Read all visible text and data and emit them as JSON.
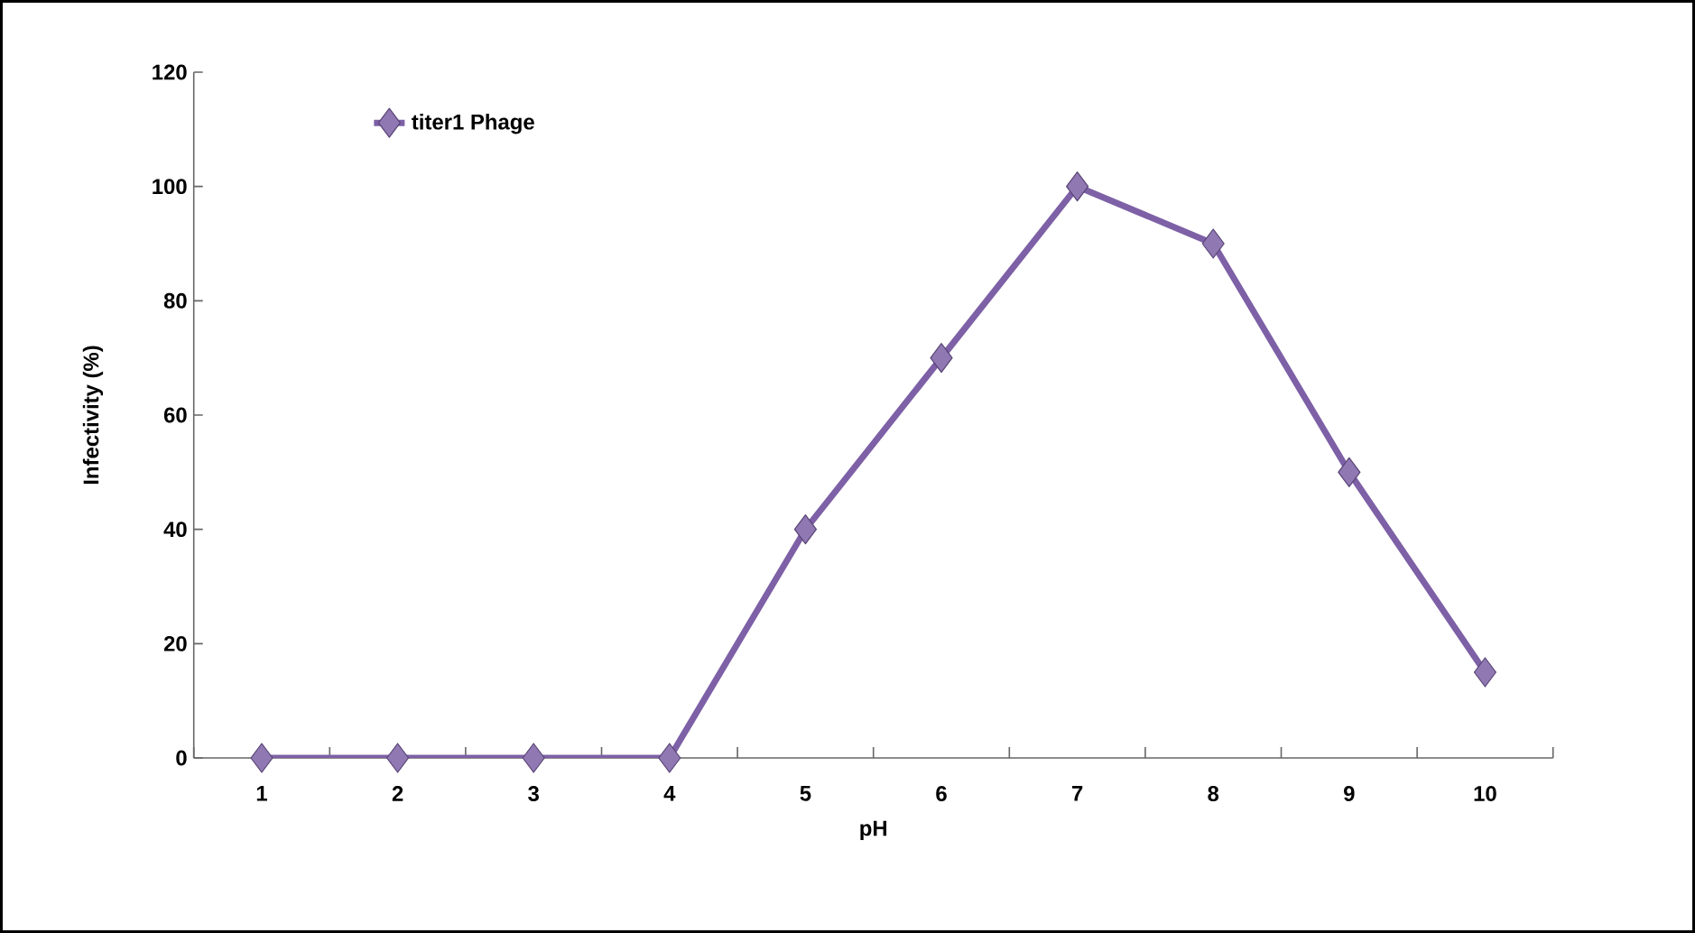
{
  "chart_data": {
    "type": "line",
    "xlabel": "pH",
    "ylabel": "Infectivity (%)",
    "categories": [
      "1",
      "2",
      "3",
      "4",
      "5",
      "6",
      "7",
      "8",
      "9",
      "10"
    ],
    "series": [
      {
        "name": "titer1 Phage",
        "color": "#7d60a6",
        "values": [
          0,
          0,
          0,
          0,
          40,
          70,
          100,
          90,
          50,
          15
        ]
      }
    ],
    "ylim": [
      0,
      120
    ],
    "yticks": [
      0,
      20,
      40,
      60,
      80,
      100,
      120
    ],
    "grid": false,
    "legend": "top left",
    "marker": "diamond",
    "line_style": "solid"
  }
}
